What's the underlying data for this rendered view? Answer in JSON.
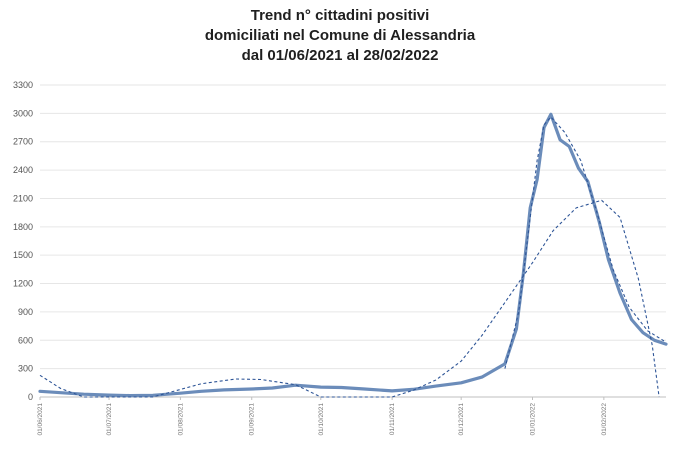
{
  "title_lines": [
    "Trend n° cittadini positivi",
    "domiciliati nel Comune di Alessandria",
    "dal 01/06/2021 al 28/02/2022"
  ],
  "chart_data": {
    "type": "line",
    "title": "Trend n° cittadini positivi domiciliati nel Comune di Alessandria dal 01/06/2021 al 28/02/2022",
    "xlabel": "",
    "ylabel": "",
    "ylim": [
      0,
      3300
    ],
    "xlim": [
      "2021-06-01",
      "2022-02-28"
    ],
    "yticks": [
      0,
      300,
      600,
      900,
      1200,
      1500,
      1800,
      2100,
      2400,
      2700,
      3000,
      3300
    ],
    "xticks": [
      "01/06/2021",
      "01/07/2021",
      "01/08/2021",
      "01/09/2021",
      "01/10/2021",
      "01/11/2021",
      "01/12/2021",
      "01/01/2022",
      "01/02/2022"
    ],
    "grid": true,
    "legend": "none",
    "colors": {
      "series": "#6b8cba",
      "trend": "#2e5597",
      "grid": "#e6e6e6",
      "axis": "#bfbfbf"
    },
    "series": [
      {
        "style": "solid",
        "points": [
          [
            "2021-06-01",
            60
          ],
          [
            "2021-06-10",
            45
          ],
          [
            "2021-06-20",
            30
          ],
          [
            "2021-07-01",
            20
          ],
          [
            "2021-07-10",
            15
          ],
          [
            "2021-07-20",
            18
          ],
          [
            "2021-08-01",
            40
          ],
          [
            "2021-08-10",
            60
          ],
          [
            "2021-08-20",
            75
          ],
          [
            "2021-09-01",
            85
          ],
          [
            "2021-09-10",
            95
          ],
          [
            "2021-09-20",
            125
          ],
          [
            "2021-10-01",
            105
          ],
          [
            "2021-10-10",
            100
          ],
          [
            "2021-10-20",
            85
          ],
          [
            "2021-11-01",
            65
          ],
          [
            "2021-11-10",
            80
          ],
          [
            "2021-11-20",
            115
          ],
          [
            "2021-12-01",
            150
          ],
          [
            "2021-12-10",
            210
          ],
          [
            "2021-12-20",
            350
          ],
          [
            "2021-12-25",
            720
          ],
          [
            "2021-12-28",
            1300
          ],
          [
            "2021-12-31",
            2000
          ],
          [
            "2022-01-03",
            2300
          ],
          [
            "2022-01-06",
            2850
          ],
          [
            "2022-01-09",
            2990
          ],
          [
            "2022-01-13",
            2720
          ],
          [
            "2022-01-17",
            2650
          ],
          [
            "2022-01-21",
            2420
          ],
          [
            "2022-01-25",
            2280
          ],
          [
            "2022-01-30",
            1850
          ],
          [
            "2022-02-03",
            1450
          ],
          [
            "2022-02-08",
            1100
          ],
          [
            "2022-02-13",
            820
          ],
          [
            "2022-02-18",
            680
          ],
          [
            "2022-02-23",
            600
          ],
          [
            "2022-02-28",
            560
          ]
        ]
      },
      {
        "style": "dashed",
        "points": [
          [
            "2021-06-01",
            230
          ],
          [
            "2021-06-10",
            90
          ],
          [
            "2021-06-20",
            0
          ],
          [
            "2021-07-20",
            0
          ],
          [
            "2021-08-10",
            140
          ],
          [
            "2021-08-25",
            190
          ],
          [
            "2021-09-05",
            185
          ],
          [
            "2021-09-20",
            130
          ],
          [
            "2021-10-01",
            0
          ],
          [
            "2021-11-01",
            0
          ],
          [
            "2021-11-10",
            70
          ],
          [
            "2021-11-20",
            180
          ],
          [
            "2021-12-01",
            380
          ],
          [
            "2021-12-10",
            650
          ],
          [
            "2021-12-20",
            1000
          ],
          [
            "2022-01-01",
            1420
          ],
          [
            "2022-01-10",
            1760
          ],
          [
            "2022-01-20",
            2000
          ],
          [
            "2022-01-31",
            2080
          ],
          [
            "2022-02-08",
            1900
          ],
          [
            "2022-02-16",
            1250
          ],
          [
            "2022-02-22",
            550
          ],
          [
            "2022-02-25",
            0
          ]
        ]
      },
      {
        "style": "dashed",
        "points": [
          [
            "2021-12-20",
            300
          ],
          [
            "2021-12-26",
            900
          ],
          [
            "2021-12-30",
            1700
          ],
          [
            "2022-01-03",
            2500
          ],
          [
            "2022-01-06",
            2880
          ],
          [
            "2022-01-09",
            2960
          ],
          [
            "2022-01-15",
            2800
          ],
          [
            "2022-01-22",
            2500
          ],
          [
            "2022-01-29",
            1950
          ],
          [
            "2022-02-05",
            1350
          ],
          [
            "2022-02-12",
            950
          ],
          [
            "2022-02-20",
            700
          ],
          [
            "2022-02-28",
            580
          ]
        ]
      }
    ]
  }
}
